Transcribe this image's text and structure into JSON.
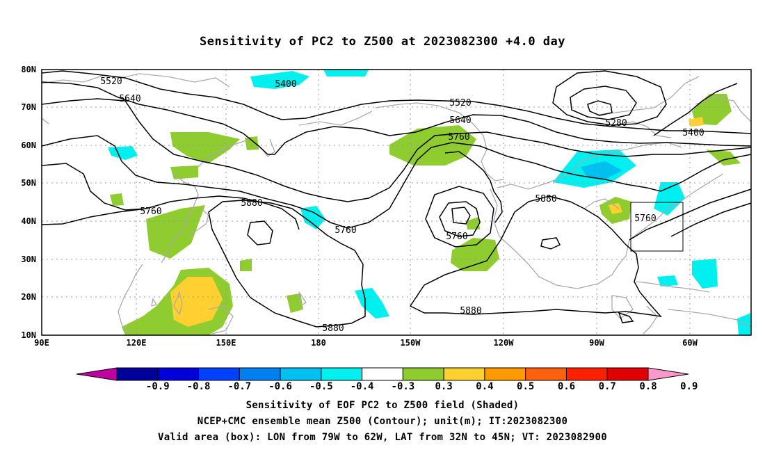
{
  "title": "Sensitivity of PC2 to Z500 at 2023082300 +4.0 day",
  "lon_labels": [
    "90E",
    "120E",
    "150E",
    "180",
    "150W",
    "120W",
    "90W",
    "60W"
  ],
  "lat_labels": [
    "80N",
    "70N",
    "60N",
    "50N",
    "40N",
    "30N",
    "20N",
    "10N"
  ],
  "contour_labels": [
    "5520",
    "5640",
    "5400",
    "5760",
    "5880",
    "5520",
    "5640",
    "5760",
    "5280",
    "5400",
    "5760",
    "5760",
    "5880",
    "5760",
    "5880",
    "5880"
  ],
  "colorbar": {
    "tick_labels": [
      "-0.9",
      "-0.8",
      "-0.7",
      "-0.6",
      "-0.5",
      "-0.4",
      "-0.3",
      "0.3",
      "0.4",
      "0.5",
      "0.6",
      "0.7",
      "0.8",
      "0.9"
    ],
    "colors": [
      "#c000a0",
      "#00009a",
      "#0000d8",
      "#0040ff",
      "#0080f0",
      "#00c0f0",
      "#00f0f0",
      "#ffffff",
      "#8fcc30",
      "#ffd030",
      "#ff9a00",
      "#ff6010",
      "#ff2000",
      "#e00000",
      "#ff99cc"
    ]
  },
  "shading_colors": {
    "cyan": "#00f0f0",
    "lightblue": "#00c0f0",
    "green": "#8fcc30",
    "yellow": "#ffd030",
    "orange": "#ff9a00"
  },
  "captions": [
    "Sensitivity of EOF PC2 to Z500 field (Shaded)",
    "NCEP+CMC ensemble mean Z500 (Contour); unit(m); IT:2023082300",
    "Valid area (box): LON from 79W to 62W, LAT from 32N to 45N; VT: 2023082900"
  ]
}
